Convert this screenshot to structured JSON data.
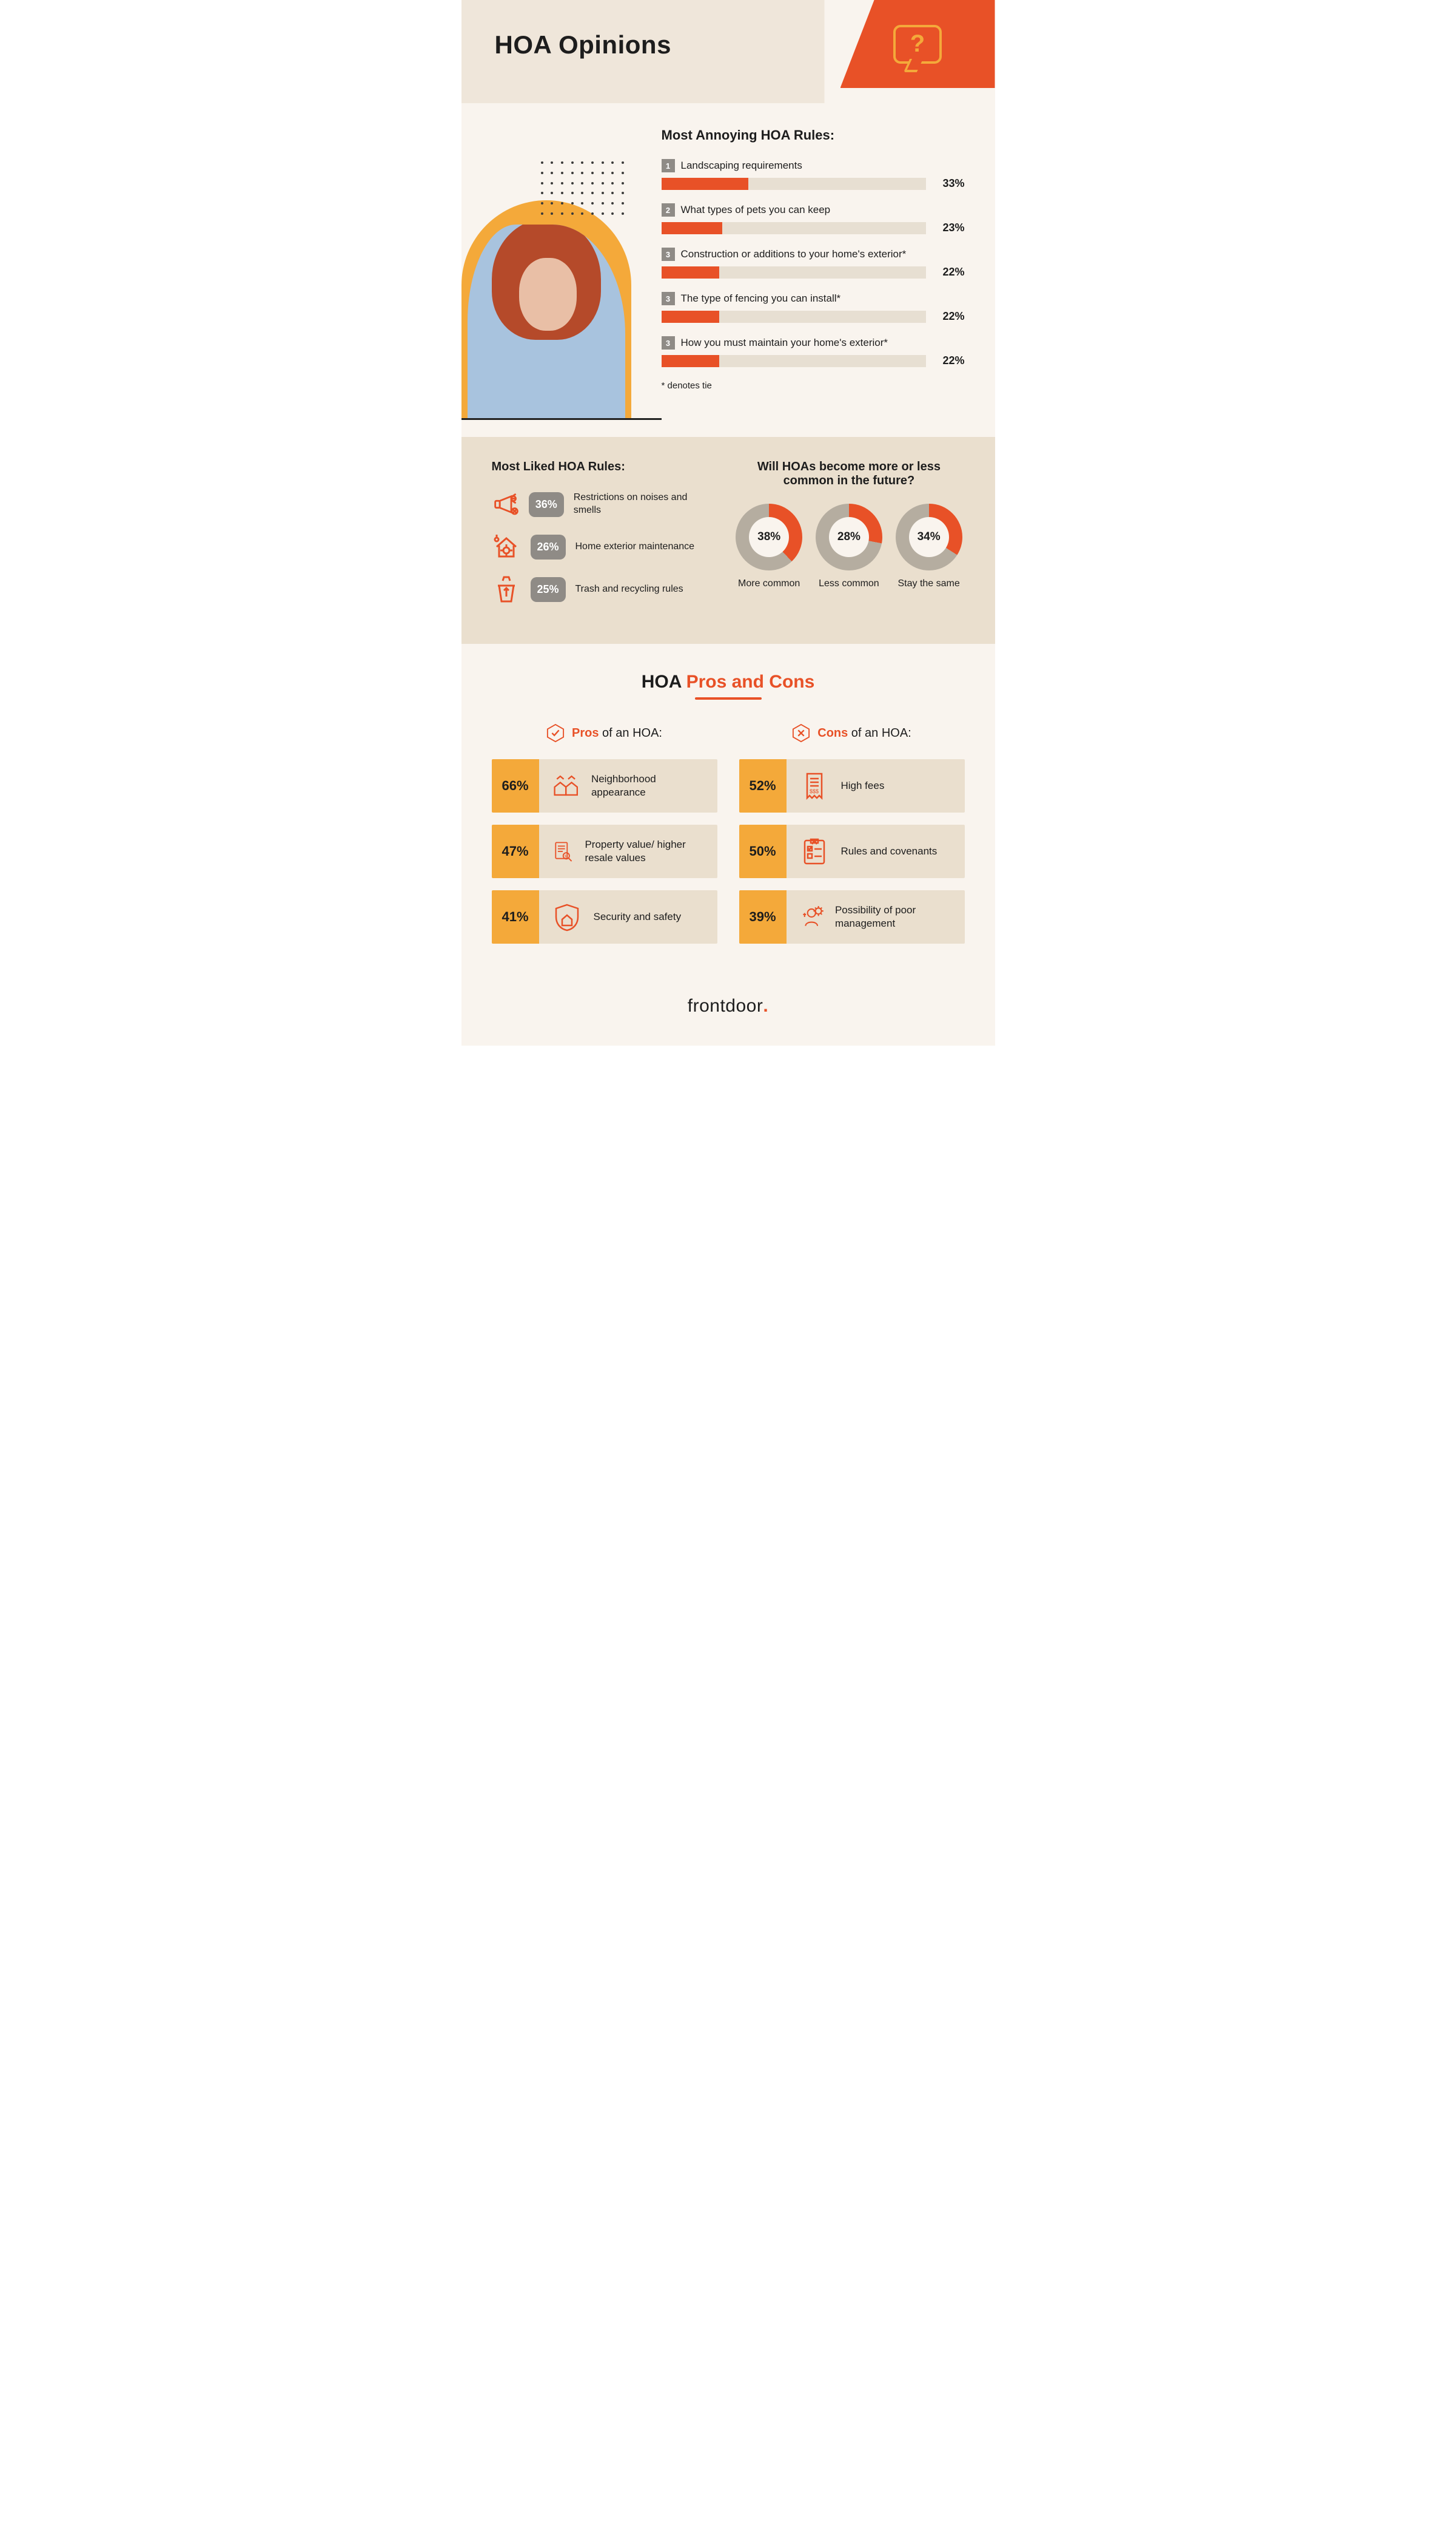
{
  "header": {
    "title": "HOA Opinions",
    "flag_color": "#e85127",
    "bubble_border": "#f4a93a",
    "bubble_glyph": "?"
  },
  "annoying": {
    "title": "Most Annoying HOA Rules:",
    "tie_note": "* denotes tie",
    "bars": [
      {
        "rank": "1",
        "label": "Landscaping requirements",
        "pct": 33
      },
      {
        "rank": "2",
        "label": "What types of pets you can keep",
        "pct": 23
      },
      {
        "rank": "3",
        "label": "Construction or additions to your home's exterior*",
        "pct": 22
      },
      {
        "rank": "3",
        "label": "The type of fencing you can install*",
        "pct": 22
      },
      {
        "rank": "3",
        "label": "How you must maintain your home's exterior*",
        "pct": 22
      }
    ],
    "bar_color": "#e85127",
    "track_color": "#e7dfd2",
    "pct_scale_max": 100
  },
  "liked": {
    "title": "Most Liked HOA Rules:",
    "rows": [
      {
        "pct": "36%",
        "label": "Restrictions on noises and smells",
        "icon": "megaphone"
      },
      {
        "pct": "26%",
        "label": "Home exterior maintenance",
        "icon": "home-wrench"
      },
      {
        "pct": "25%",
        "label": "Trash and recycling rules",
        "icon": "recycle-bin"
      }
    ],
    "pct_bg": "#8f8b86",
    "icon_color": "#e85127"
  },
  "future": {
    "title": "Will HOAs become more or less common in the future?",
    "ring_fg": "#e85127",
    "ring_bg": "#b5ada0",
    "items": [
      {
        "pct": 38,
        "label": "More common"
      },
      {
        "pct": 28,
        "label": "Less common"
      },
      {
        "pct": 34,
        "label": "Stay the same"
      }
    ],
    "start_angle_deg": 0
  },
  "proscons": {
    "title_prefix": "HOA ",
    "title_accent": "Pros and Cons",
    "pros_head_accent": "Pros",
    "pros_head_rest": " of an HOA:",
    "cons_head_accent": "Cons",
    "cons_head_rest": " of an HOA:",
    "card_pct_bg": "#f4a93a",
    "card_body_bg": "#eadfce",
    "icon_color": "#e85127",
    "pros": [
      {
        "pct": "66%",
        "label": "Neighborhood appearance",
        "icon": "houses"
      },
      {
        "pct": "47%",
        "label": "Property value/ higher resale values",
        "icon": "doc-search"
      },
      {
        "pct": "41%",
        "label": "Security and safety",
        "icon": "shield-home"
      }
    ],
    "cons": [
      {
        "pct": "52%",
        "label": "High fees",
        "icon": "receipt"
      },
      {
        "pct": "50%",
        "label": "Rules and covenants",
        "icon": "checklist"
      },
      {
        "pct": "39%",
        "label": "Possibility of poor management",
        "icon": "manager"
      }
    ]
  },
  "footer": {
    "brand": "frontdoor"
  }
}
